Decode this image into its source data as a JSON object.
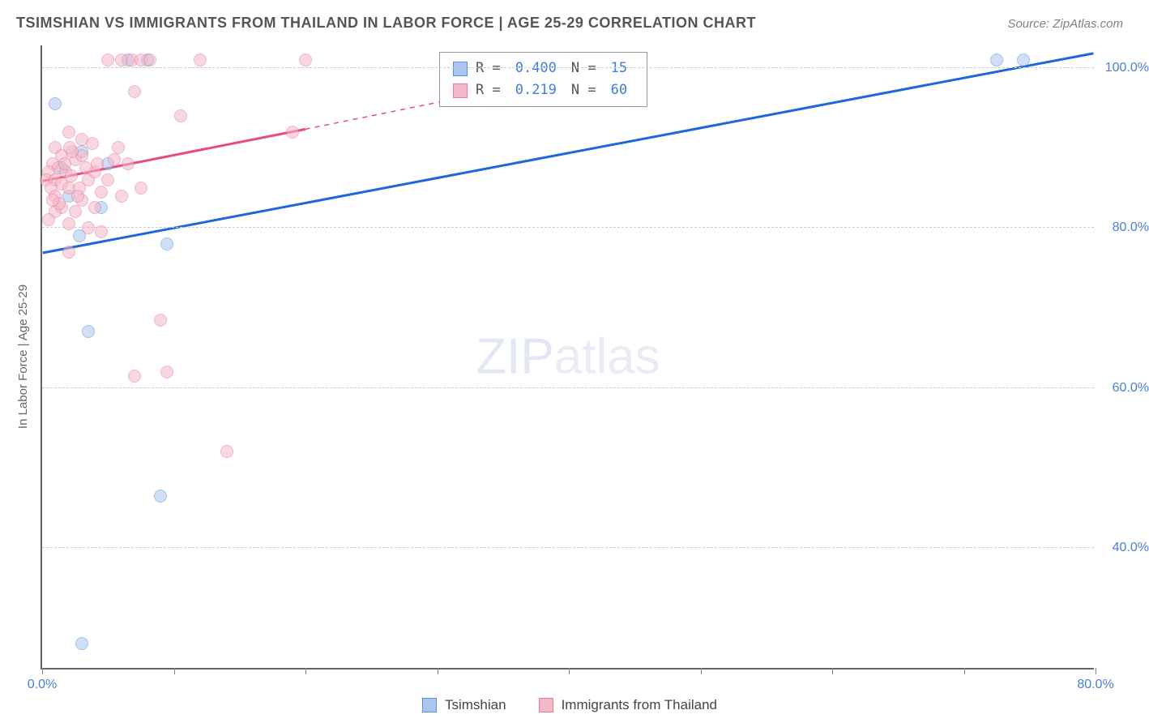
{
  "title": "TSIMSHIAN VS IMMIGRANTS FROM THAILAND IN LABOR FORCE | AGE 25-29 CORRELATION CHART",
  "source_label": "Source: ZipAtlas.com",
  "y_axis_title": "In Labor Force | Age 25-29",
  "watermark_a": "ZIP",
  "watermark_b": "atlas",
  "chart": {
    "type": "scatter",
    "xlim": [
      0,
      80
    ],
    "ylim": [
      25,
      103
    ],
    "x_ticks": [
      0,
      10,
      20,
      30,
      40,
      50,
      60,
      70,
      80
    ],
    "x_tick_labels": {
      "0": "0.0%",
      "80": "80.0%"
    },
    "y_ticks": [
      40,
      60,
      80,
      100
    ],
    "y_tick_labels": {
      "40": "40.0%",
      "60": "60.0%",
      "80": "80.0%",
      "100": "100.0%"
    },
    "background_color": "#ffffff",
    "grid_color": "#cccccc",
    "axis_color": "#666666",
    "marker_radius": 8,
    "marker_opacity": 0.55,
    "series": [
      {
        "name": "Tsimshian",
        "color_fill": "#a8c6f0",
        "color_stroke": "#5b8fd6",
        "R": "0.400",
        "N": "15",
        "trend": {
          "x1": 0,
          "y1": 77,
          "x2": 80,
          "y2": 102,
          "color": "#1e66e0",
          "width": 3
        },
        "points": [
          [
            1.0,
            95.5
          ],
          [
            2.8,
            79.0
          ],
          [
            3.0,
            89.5
          ],
          [
            1.5,
            87.5
          ],
          [
            4.5,
            82.5
          ],
          [
            5.0,
            88.0
          ],
          [
            9.5,
            78.0
          ],
          [
            3.5,
            67.0
          ],
          [
            9.0,
            46.5
          ],
          [
            3.0,
            28.0
          ],
          [
            72.5,
            101.0
          ],
          [
            74.5,
            101.0
          ],
          [
            6.5,
            101.0
          ],
          [
            8.0,
            101.0
          ],
          [
            2.0,
            84.0
          ]
        ]
      },
      {
        "name": "Immigrants from Thailand",
        "color_fill": "#f5b8c8",
        "color_stroke": "#e87a9a",
        "R": "0.219",
        "N": "60",
        "trend_solid": {
          "x1": 0,
          "y1": 86,
          "x2": 20,
          "y2": 92.5,
          "color": "#e94b7a",
          "width": 3
        },
        "trend_dash": {
          "x1": 20,
          "y1": 92.5,
          "x2": 44,
          "y2": 100.5,
          "color": "#e94b7a",
          "width": 1.5
        },
        "points": [
          [
            5.0,
            101.0
          ],
          [
            6.0,
            101.0
          ],
          [
            6.8,
            101.0
          ],
          [
            7.5,
            101.0
          ],
          [
            8.2,
            101.0
          ],
          [
            12.0,
            101.0
          ],
          [
            20.0,
            101.0
          ],
          [
            7.0,
            97.0
          ],
          [
            10.5,
            94.0
          ],
          [
            19.0,
            92.0
          ],
          [
            2.0,
            92.0
          ],
          [
            3.0,
            91.0
          ],
          [
            1.0,
            90.0
          ],
          [
            1.5,
            89.0
          ],
          [
            2.5,
            88.5
          ],
          [
            0.8,
            88.0
          ],
          [
            1.2,
            87.5
          ],
          [
            0.5,
            87.0
          ],
          [
            1.8,
            87.0
          ],
          [
            2.2,
            86.5
          ],
          [
            0.3,
            86.0
          ],
          [
            1.0,
            86.0
          ],
          [
            1.5,
            85.5
          ],
          [
            0.7,
            85.0
          ],
          [
            2.0,
            85.0
          ],
          [
            2.8,
            85.0
          ],
          [
            3.5,
            86.0
          ],
          [
            4.0,
            87.0
          ],
          [
            4.5,
            84.5
          ],
          [
            5.0,
            86.0
          ],
          [
            5.5,
            88.5
          ],
          [
            6.0,
            84.0
          ],
          [
            3.0,
            83.5
          ],
          [
            2.5,
            82.0
          ],
          [
            1.5,
            82.5
          ],
          [
            1.0,
            82.0
          ],
          [
            0.5,
            81.0
          ],
          [
            2.0,
            80.5
          ],
          [
            3.5,
            80.0
          ],
          [
            4.0,
            82.5
          ],
          [
            4.5,
            79.5
          ],
          [
            3.0,
            89.0
          ],
          [
            6.5,
            88.0
          ],
          [
            7.5,
            85.0
          ],
          [
            3.8,
            90.5
          ],
          [
            4.2,
            88.0
          ],
          [
            2.3,
            89.5
          ],
          [
            9.0,
            68.5
          ],
          [
            7.0,
            61.5
          ],
          [
            9.5,
            62.0
          ],
          [
            14.0,
            52.0
          ],
          [
            2.0,
            77.0
          ],
          [
            1.0,
            84.0
          ],
          [
            1.3,
            83.0
          ],
          [
            0.8,
            83.5
          ],
          [
            5.8,
            90.0
          ],
          [
            2.7,
            84.0
          ],
          [
            3.3,
            87.5
          ],
          [
            1.7,
            88.0
          ],
          [
            2.1,
            90.0
          ]
        ]
      }
    ]
  },
  "legend_bottom": [
    {
      "swatch_fill": "#a8c6f0",
      "swatch_stroke": "#5b8fd6",
      "label": "Tsimshian"
    },
    {
      "swatch_fill": "#f5b8c8",
      "swatch_stroke": "#e87a9a",
      "label": "Immigrants from Thailand"
    }
  ],
  "legend_top_symbols": {
    "r": "R =",
    "n": "N ="
  }
}
